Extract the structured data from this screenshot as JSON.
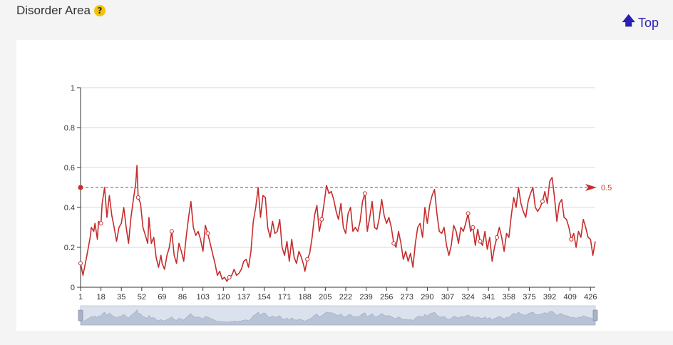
{
  "header": {
    "title": "Disorder Area",
    "help_icon_glyph": "?",
    "help_icon": "help-question-icon",
    "top_link_label": "Top",
    "top_link_icon": "arrow-up-icon"
  },
  "colors": {
    "line": "#c62d2d",
    "accent": "#2a1fb0",
    "help": "#f5c400"
  },
  "chart_data": {
    "type": "line",
    "title": "",
    "xlabel": "",
    "ylabel": "",
    "ylim": [
      0,
      1
    ],
    "xlim": [
      1,
      430
    ],
    "y_ticks": [
      "0",
      "0.2",
      "0.4",
      "0.6",
      "0.8",
      "1"
    ],
    "x_ticks": [
      "1",
      "18",
      "35",
      "52",
      "69",
      "86",
      "103",
      "120",
      "137",
      "154",
      "171",
      "188",
      "205",
      "222",
      "239",
      "256",
      "273",
      "290",
      "307",
      "324",
      "341",
      "358",
      "375",
      "392",
      "409",
      "426"
    ],
    "reference_line": {
      "value": 0.5,
      "label": "0.5"
    },
    "grid": true,
    "zoom_slider": true,
    "series": [
      {
        "points": [
          [
            1,
            0.12
          ],
          [
            3,
            0.06
          ],
          [
            6,
            0.15
          ],
          [
            9,
            0.25
          ],
          [
            10,
            0.3
          ],
          [
            12,
            0.28
          ],
          [
            13,
            0.32
          ],
          [
            15,
            0.24
          ],
          [
            16,
            0.33
          ],
          [
            18,
            0.32
          ],
          [
            19,
            0.42
          ],
          [
            21,
            0.5
          ],
          [
            23,
            0.35
          ],
          [
            25,
            0.46
          ],
          [
            27,
            0.36
          ],
          [
            29,
            0.3
          ],
          [
            31,
            0.23
          ],
          [
            33,
            0.3
          ],
          [
            35,
            0.32
          ],
          [
            37,
            0.4
          ],
          [
            39,
            0.3
          ],
          [
            41,
            0.22
          ],
          [
            43,
            0.35
          ],
          [
            45,
            0.44
          ],
          [
            47,
            0.52
          ],
          [
            48,
            0.61
          ],
          [
            49,
            0.45
          ],
          [
            51,
            0.42
          ],
          [
            53,
            0.3
          ],
          [
            55,
            0.26
          ],
          [
            57,
            0.22
          ],
          [
            58,
            0.35
          ],
          [
            60,
            0.22
          ],
          [
            62,
            0.25
          ],
          [
            64,
            0.15
          ],
          [
            66,
            0.1
          ],
          [
            68,
            0.16
          ],
          [
            69,
            0.12
          ],
          [
            71,
            0.09
          ],
          [
            73,
            0.16
          ],
          [
            75,
            0.2
          ],
          [
            77,
            0.28
          ],
          [
            79,
            0.16
          ],
          [
            81,
            0.12
          ],
          [
            83,
            0.22
          ],
          [
            85,
            0.18
          ],
          [
            87,
            0.13
          ],
          [
            89,
            0.25
          ],
          [
            91,
            0.35
          ],
          [
            93,
            0.43
          ],
          [
            95,
            0.3
          ],
          [
            97,
            0.26
          ],
          [
            99,
            0.28
          ],
          [
            101,
            0.24
          ],
          [
            103,
            0.18
          ],
          [
            105,
            0.31
          ],
          [
            107,
            0.27
          ],
          [
            109,
            0.22
          ],
          [
            111,
            0.17
          ],
          [
            113,
            0.12
          ],
          [
            115,
            0.06
          ],
          [
            117,
            0.08
          ],
          [
            119,
            0.04
          ],
          [
            121,
            0.05
          ],
          [
            123,
            0.03
          ],
          [
            125,
            0.05
          ],
          [
            127,
            0.06
          ],
          [
            129,
            0.09
          ],
          [
            131,
            0.06
          ],
          [
            133,
            0.07
          ],
          [
            135,
            0.09
          ],
          [
            137,
            0.13
          ],
          [
            139,
            0.14
          ],
          [
            141,
            0.1
          ],
          [
            143,
            0.18
          ],
          [
            145,
            0.33
          ],
          [
            147,
            0.4
          ],
          [
            149,
            0.5
          ],
          [
            151,
            0.35
          ],
          [
            153,
            0.46
          ],
          [
            155,
            0.45
          ],
          [
            157,
            0.3
          ],
          [
            159,
            0.25
          ],
          [
            161,
            0.33
          ],
          [
            163,
            0.27
          ],
          [
            165,
            0.28
          ],
          [
            167,
            0.34
          ],
          [
            169,
            0.2
          ],
          [
            171,
            0.16
          ],
          [
            173,
            0.23
          ],
          [
            175,
            0.13
          ],
          [
            177,
            0.24
          ],
          [
            179,
            0.15
          ],
          [
            181,
            0.12
          ],
          [
            183,
            0.18
          ],
          [
            185,
            0.15
          ],
          [
            187,
            0.11
          ],
          [
            188,
            0.08
          ],
          [
            190,
            0.14
          ],
          [
            192,
            0.17
          ],
          [
            194,
            0.25
          ],
          [
            196,
            0.36
          ],
          [
            198,
            0.41
          ],
          [
            200,
            0.28
          ],
          [
            202,
            0.34
          ],
          [
            204,
            0.42
          ],
          [
            206,
            0.51
          ],
          [
            208,
            0.47
          ],
          [
            210,
            0.48
          ],
          [
            212,
            0.44
          ],
          [
            214,
            0.38
          ],
          [
            216,
            0.34
          ],
          [
            218,
            0.42
          ],
          [
            220,
            0.3
          ],
          [
            222,
            0.27
          ],
          [
            224,
            0.37
          ],
          [
            226,
            0.4
          ],
          [
            228,
            0.28
          ],
          [
            230,
            0.3
          ],
          [
            232,
            0.28
          ],
          [
            234,
            0.33
          ],
          [
            236,
            0.43
          ],
          [
            238,
            0.47
          ],
          [
            240,
            0.28
          ],
          [
            242,
            0.35
          ],
          [
            244,
            0.43
          ],
          [
            246,
            0.3
          ],
          [
            248,
            0.29
          ],
          [
            250,
            0.35
          ],
          [
            252,
            0.44
          ],
          [
            254,
            0.36
          ],
          [
            256,
            0.32
          ],
          [
            258,
            0.35
          ],
          [
            260,
            0.3
          ],
          [
            262,
            0.22
          ],
          [
            264,
            0.2
          ],
          [
            266,
            0.28
          ],
          [
            268,
            0.22
          ],
          [
            270,
            0.14
          ],
          [
            272,
            0.18
          ],
          [
            274,
            0.13
          ],
          [
            276,
            0.17
          ],
          [
            278,
            0.1
          ],
          [
            280,
            0.22
          ],
          [
            282,
            0.3
          ],
          [
            284,
            0.32
          ],
          [
            286,
            0.25
          ],
          [
            288,
            0.4
          ],
          [
            290,
            0.32
          ],
          [
            292,
            0.41
          ],
          [
            294,
            0.46
          ],
          [
            296,
            0.49
          ],
          [
            298,
            0.37
          ],
          [
            300,
            0.28
          ],
          [
            302,
            0.27
          ],
          [
            304,
            0.3
          ],
          [
            306,
            0.21
          ],
          [
            308,
            0.16
          ],
          [
            310,
            0.21
          ],
          [
            312,
            0.31
          ],
          [
            314,
            0.28
          ],
          [
            316,
            0.22
          ],
          [
            318,
            0.3
          ],
          [
            320,
            0.28
          ],
          [
            322,
            0.32
          ],
          [
            324,
            0.37
          ],
          [
            326,
            0.28
          ],
          [
            328,
            0.3
          ],
          [
            330,
            0.21
          ],
          [
            332,
            0.29
          ],
          [
            334,
            0.23
          ],
          [
            336,
            0.21
          ],
          [
            338,
            0.28
          ],
          [
            340,
            0.19
          ],
          [
            342,
            0.25
          ],
          [
            344,
            0.13
          ],
          [
            346,
            0.2
          ],
          [
            348,
            0.25
          ],
          [
            350,
            0.3
          ],
          [
            352,
            0.25
          ],
          [
            354,
            0.18
          ],
          [
            356,
            0.27
          ],
          [
            358,
            0.25
          ],
          [
            360,
            0.36
          ],
          [
            362,
            0.45
          ],
          [
            364,
            0.4
          ],
          [
            366,
            0.5
          ],
          [
            368,
            0.42
          ],
          [
            370,
            0.38
          ],
          [
            372,
            0.35
          ],
          [
            374,
            0.43
          ],
          [
            376,
            0.47
          ],
          [
            378,
            0.5
          ],
          [
            380,
            0.4
          ],
          [
            382,
            0.38
          ],
          [
            384,
            0.4
          ],
          [
            386,
            0.43
          ],
          [
            388,
            0.48
          ],
          [
            390,
            0.42
          ],
          [
            392,
            0.53
          ],
          [
            394,
            0.55
          ],
          [
            396,
            0.45
          ],
          [
            398,
            0.33
          ],
          [
            400,
            0.42
          ],
          [
            402,
            0.44
          ],
          [
            404,
            0.35
          ],
          [
            406,
            0.34
          ],
          [
            408,
            0.3
          ],
          [
            410,
            0.24
          ],
          [
            412,
            0.27
          ],
          [
            414,
            0.2
          ],
          [
            416,
            0.28
          ],
          [
            418,
            0.25
          ],
          [
            420,
            0.34
          ],
          [
            422,
            0.3
          ],
          [
            424,
            0.25
          ],
          [
            426,
            0.24
          ],
          [
            428,
            0.16
          ],
          [
            430,
            0.23
          ]
        ]
      }
    ]
  }
}
